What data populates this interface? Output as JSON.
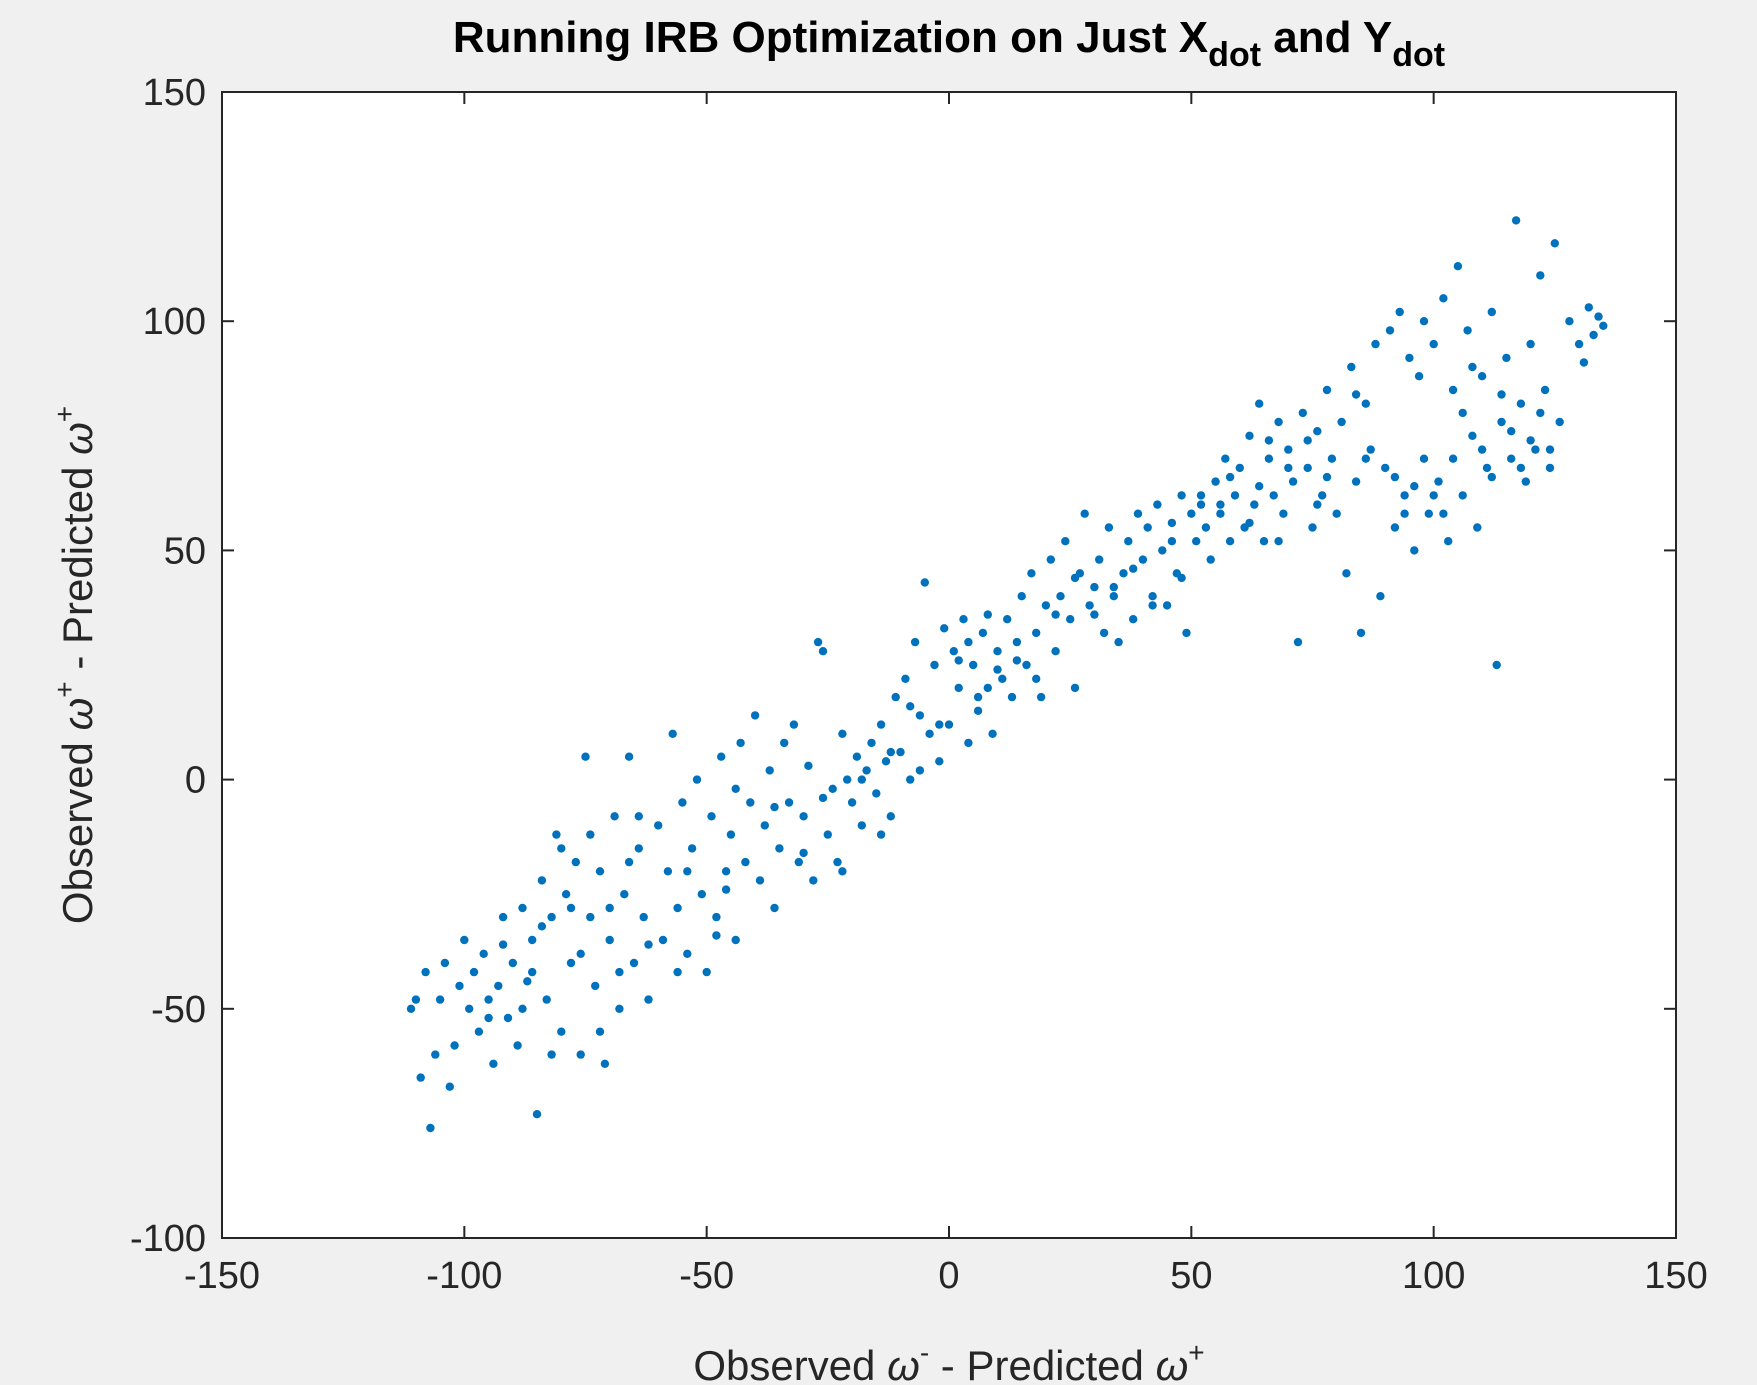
{
  "chart_data": {
    "type": "scatter",
    "title": {
      "main": "Running IRB Optimization on Just X",
      "sub1": "dot",
      "mid": " and Y",
      "sub2": "dot"
    },
    "xlabel": {
      "pre": "Observed ",
      "sym1": "ω",
      "sup1": "-",
      "mid": " - Predicted ",
      "sym2": "ω",
      "sup2": "+"
    },
    "ylabel": {
      "pre": "Observed ",
      "sym1": "ω",
      "sup1": "+",
      "mid": " - Predicted ",
      "sym2": "ω",
      "sup2": "+"
    },
    "xlim": [
      -150,
      150
    ],
    "ylim": [
      -100,
      150
    ],
    "xticks": [
      "-150",
      "-100",
      "-50",
      "0",
      "50",
      "100",
      "150"
    ],
    "yticks": [
      "-100",
      "-50",
      "0",
      "50",
      "100",
      "150"
    ],
    "marker_color": "#0072BD",
    "grid": false,
    "points": [
      [
        -111,
        -50
      ],
      [
        -110,
        -48
      ],
      [
        -109,
        -65
      ],
      [
        -108,
        -42
      ],
      [
        -107,
        -76
      ],
      [
        -106,
        -60
      ],
      [
        -105,
        -48
      ],
      [
        -104,
        -40
      ],
      [
        -103,
        -67
      ],
      [
        -102,
        -58
      ],
      [
        -101,
        -45
      ],
      [
        -100,
        -35
      ],
      [
        -99,
        -50
      ],
      [
        -98,
        -42
      ],
      [
        -97,
        -55
      ],
      [
        -96,
        -38
      ],
      [
        -95,
        -48
      ],
      [
        -94,
        -62
      ],
      [
        -93,
        -45
      ],
      [
        -92,
        -30
      ],
      [
        -91,
        -52
      ],
      [
        -90,
        -40
      ],
      [
        -89,
        -58
      ],
      [
        -88,
        -28
      ],
      [
        -87,
        -44
      ],
      [
        -86,
        -35
      ],
      [
        -85,
        -73
      ],
      [
        -84,
        -22
      ],
      [
        -83,
        -48
      ],
      [
        -82,
        -30
      ],
      [
        -81,
        -12
      ],
      [
        -80,
        -55
      ],
      [
        -79,
        -25
      ],
      [
        -78,
        -40
      ],
      [
        -77,
        -18
      ],
      [
        -76,
        -60
      ],
      [
        -75,
        5
      ],
      [
        -74,
        -30
      ],
      [
        -73,
        -45
      ],
      [
        -72,
        -20
      ],
      [
        -71,
        -62
      ],
      [
        -70,
        -35
      ],
      [
        -69,
        -8
      ],
      [
        -68,
        -50
      ],
      [
        -67,
        -25
      ],
      [
        -66,
        5
      ],
      [
        -65,
        -40
      ],
      [
        -64,
        -15
      ],
      [
        -63,
        -30
      ],
      [
        -62,
        -48
      ],
      [
        -60,
        -10
      ],
      [
        -59,
        -35
      ],
      [
        -58,
        -20
      ],
      [
        -57,
        10
      ],
      [
        -56,
        -28
      ],
      [
        -55,
        -5
      ],
      [
        -54,
        -38
      ],
      [
        -53,
        -15
      ],
      [
        -52,
        0
      ],
      [
        -51,
        -25
      ],
      [
        -50,
        -42
      ],
      [
        -49,
        -8
      ],
      [
        -48,
        -30
      ],
      [
        -47,
        5
      ],
      [
        -46,
        -20
      ],
      [
        -45,
        -12
      ],
      [
        -44,
        -35
      ],
      [
        -43,
        8
      ],
      [
        -42,
        -18
      ],
      [
        -41,
        -5
      ],
      [
        -40,
        14
      ],
      [
        -39,
        -22
      ],
      [
        -38,
        -10
      ],
      [
        -37,
        2
      ],
      [
        -36,
        -28
      ],
      [
        -35,
        -15
      ],
      [
        -34,
        8
      ],
      [
        -33,
        -5
      ],
      [
        -32,
        12
      ],
      [
        -31,
        -18
      ],
      [
        -30,
        -8
      ],
      [
        -29,
        3
      ],
      [
        -28,
        -22
      ],
      [
        -27,
        30
      ],
      [
        -26,
        28
      ],
      [
        -25,
        -12
      ],
      [
        -24,
        -2
      ],
      [
        -23,
        -18
      ],
      [
        -22,
        10
      ],
      [
        -21,
        0
      ],
      [
        -20,
        -5
      ],
      [
        -19,
        5
      ],
      [
        -18,
        -10
      ],
      [
        -17,
        2
      ],
      [
        -16,
        8
      ],
      [
        -15,
        -3
      ],
      [
        -14,
        12
      ],
      [
        -13,
        4
      ],
      [
        -12,
        -8
      ],
      [
        -11,
        18
      ],
      [
        -10,
        6
      ],
      [
        -9,
        22
      ],
      [
        -8,
        0
      ],
      [
        -7,
        30
      ],
      [
        -6,
        14
      ],
      [
        -5,
        43
      ],
      [
        -4,
        10
      ],
      [
        -3,
        25
      ],
      [
        -2,
        4
      ],
      [
        -1,
        33
      ],
      [
        0,
        12
      ],
      [
        1,
        28
      ],
      [
        2,
        20
      ],
      [
        3,
        35
      ],
      [
        4,
        8
      ],
      [
        5,
        25
      ],
      [
        6,
        15
      ],
      [
        7,
        32
      ],
      [
        8,
        20
      ],
      [
        9,
        10
      ],
      [
        10,
        28
      ],
      [
        11,
        22
      ],
      [
        12,
        35
      ],
      [
        13,
        18
      ],
      [
        14,
        30
      ],
      [
        15,
        40
      ],
      [
        16,
        25
      ],
      [
        17,
        45
      ],
      [
        18,
        32
      ],
      [
        19,
        18
      ],
      [
        20,
        38
      ],
      [
        21,
        48
      ],
      [
        22,
        28
      ],
      [
        23,
        40
      ],
      [
        24,
        52
      ],
      [
        25,
        35
      ],
      [
        26,
        20
      ],
      [
        27,
        45
      ],
      [
        28,
        58
      ],
      [
        29,
        38
      ],
      [
        30,
        42
      ],
      [
        31,
        48
      ],
      [
        32,
        32
      ],
      [
        33,
        55
      ],
      [
        34,
        40
      ],
      [
        35,
        30
      ],
      [
        36,
        45
      ],
      [
        37,
        52
      ],
      [
        38,
        35
      ],
      [
        39,
        58
      ],
      [
        40,
        48
      ],
      [
        41,
        55
      ],
      [
        42,
        40
      ],
      [
        43,
        60
      ],
      [
        44,
        50
      ],
      [
        45,
        38
      ],
      [
        46,
        56
      ],
      [
        47,
        45
      ],
      [
        48,
        62
      ],
      [
        49,
        32
      ],
      [
        50,
        58
      ],
      [
        51,
        52
      ],
      [
        52,
        60
      ],
      [
        53,
        55
      ],
      [
        54,
        48
      ],
      [
        55,
        65
      ],
      [
        56,
        58
      ],
      [
        57,
        70
      ],
      [
        58,
        52
      ],
      [
        59,
        62
      ],
      [
        60,
        68
      ],
      [
        61,
        55
      ],
      [
        62,
        75
      ],
      [
        63,
        60
      ],
      [
        64,
        82
      ],
      [
        65,
        52
      ],
      [
        66,
        70
      ],
      [
        67,
        62
      ],
      [
        68,
        78
      ],
      [
        69,
        58
      ],
      [
        70,
        72
      ],
      [
        71,
        65
      ],
      [
        72,
        30
      ],
      [
        73,
        80
      ],
      [
        74,
        68
      ],
      [
        75,
        55
      ],
      [
        76,
        76
      ],
      [
        77,
        62
      ],
      [
        78,
        85
      ],
      [
        79,
        70
      ],
      [
        80,
        58
      ],
      [
        81,
        78
      ],
      [
        82,
        45
      ],
      [
        83,
        90
      ],
      [
        84,
        65
      ],
      [
        85,
        32
      ],
      [
        86,
        82
      ],
      [
        87,
        72
      ],
      [
        88,
        95
      ],
      [
        89,
        40
      ],
      [
        90,
        68
      ],
      [
        91,
        98
      ],
      [
        92,
        55
      ],
      [
        93,
        102
      ],
      [
        94,
        62
      ],
      [
        95,
        92
      ],
      [
        96,
        50
      ],
      [
        97,
        88
      ],
      [
        98,
        70
      ],
      [
        99,
        58
      ],
      [
        100,
        95
      ],
      [
        101,
        65
      ],
      [
        102,
        105
      ],
      [
        103,
        52
      ],
      [
        104,
        85
      ],
      [
        105,
        112
      ],
      [
        106,
        62
      ],
      [
        107,
        98
      ],
      [
        108,
        75
      ],
      [
        109,
        55
      ],
      [
        110,
        88
      ],
      [
        111,
        68
      ],
      [
        112,
        102
      ],
      [
        113,
        25
      ],
      [
        114,
        78
      ],
      [
        115,
        92
      ],
      [
        116,
        70
      ],
      [
        117,
        122
      ],
      [
        118,
        82
      ],
      [
        119,
        65
      ],
      [
        120,
        95
      ],
      [
        121,
        72
      ],
      [
        122,
        110
      ],
      [
        123,
        85
      ],
      [
        124,
        68
      ],
      [
        125,
        117
      ],
      [
        126,
        78
      ],
      [
        128,
        100
      ],
      [
        130,
        95
      ],
      [
        131,
        91
      ],
      [
        132,
        103
      ],
      [
        133,
        97
      ],
      [
        134,
        101
      ],
      [
        135,
        99
      ],
      [
        -95,
        -52
      ],
      [
        -92,
        -36
      ],
      [
        -88,
        -50
      ],
      [
        -86,
        -42
      ],
      [
        -84,
        -32
      ],
      [
        -82,
        -60
      ],
      [
        -80,
        -15
      ],
      [
        -78,
        -28
      ],
      [
        -76,
        -38
      ],
      [
        -74,
        -12
      ],
      [
        -72,
        -55
      ],
      [
        -70,
        -28
      ],
      [
        -68,
        -42
      ],
      [
        -66,
        -18
      ],
      [
        -64,
        -8
      ],
      [
        -62,
        -36
      ],
      [
        -56,
        -42
      ],
      [
        -54,
        -20
      ],
      [
        -48,
        -34
      ],
      [
        -46,
        -24
      ],
      [
        -44,
        -2
      ],
      [
        -36,
        -6
      ],
      [
        -30,
        -16
      ],
      [
        -26,
        -4
      ],
      [
        -22,
        -20
      ],
      [
        -18,
        0
      ],
      [
        -14,
        -12
      ],
      [
        -12,
        6
      ],
      [
        -8,
        16
      ],
      [
        -6,
        2
      ],
      [
        -2,
        12
      ],
      [
        2,
        26
      ],
      [
        4,
        30
      ],
      [
        6,
        18
      ],
      [
        8,
        36
      ],
      [
        10,
        24
      ],
      [
        14,
        26
      ],
      [
        18,
        22
      ],
      [
        22,
        36
      ],
      [
        26,
        44
      ],
      [
        30,
        36
      ],
      [
        34,
        42
      ],
      [
        38,
        46
      ],
      [
        42,
        38
      ],
      [
        46,
        52
      ],
      [
        48,
        44
      ],
      [
        52,
        62
      ],
      [
        56,
        60
      ],
      [
        58,
        66
      ],
      [
        62,
        56
      ],
      [
        64,
        64
      ],
      [
        66,
        74
      ],
      [
        68,
        52
      ],
      [
        70,
        68
      ],
      [
        74,
        74
      ],
      [
        76,
        60
      ],
      [
        78,
        66
      ],
      [
        84,
        84
      ],
      [
        86,
        70
      ],
      [
        92,
        66
      ],
      [
        94,
        58
      ],
      [
        96,
        64
      ],
      [
        98,
        100
      ],
      [
        100,
        62
      ],
      [
        102,
        58
      ],
      [
        104,
        70
      ],
      [
        106,
        80
      ],
      [
        108,
        90
      ],
      [
        110,
        72
      ],
      [
        112,
        66
      ],
      [
        114,
        84
      ],
      [
        116,
        76
      ],
      [
        118,
        68
      ],
      [
        120,
        74
      ],
      [
        122,
        80
      ],
      [
        124,
        72
      ]
    ]
  }
}
